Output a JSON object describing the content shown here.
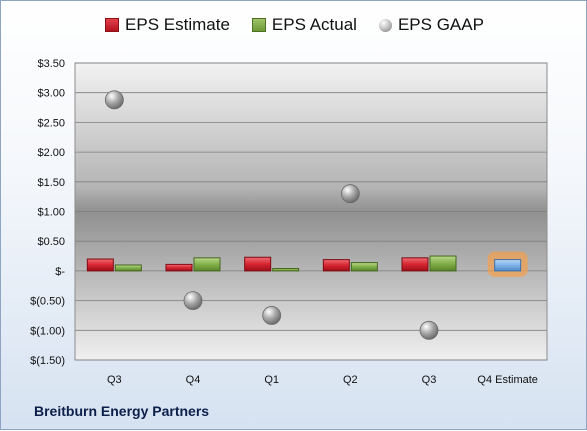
{
  "company": "Breitburn Energy Partners",
  "legend": {
    "estimate": "EPS Estimate",
    "actual": "EPS Actual",
    "gaap": "EPS GAAP"
  },
  "colors": {
    "estimate": "#cc1f2a",
    "actual": "#7fad45",
    "gaap": "#9a9a9a",
    "future_estimate": "#79aee6",
    "highlight": "#f5a04a"
  },
  "chart_data": {
    "type": "bar",
    "categories": [
      "Q3",
      "Q4",
      "Q1",
      "Q2",
      "Q3",
      "Q4 Estimate"
    ],
    "series": [
      {
        "name": "EPS Estimate",
        "values": [
          0.2,
          0.11,
          0.23,
          0.19,
          0.22,
          0.19
        ]
      },
      {
        "name": "EPS Actual",
        "values": [
          0.1,
          0.22,
          0.04,
          0.14,
          0.25,
          null
        ]
      },
      {
        "name": "EPS GAAP",
        "type": "scatter",
        "values": [
          2.88,
          -0.5,
          -0.75,
          1.3,
          -1.0,
          null
        ]
      }
    ],
    "yticks": [
      "$3.50",
      "$3.00",
      "$2.50",
      "$2.00",
      "$1.50",
      "$1.00",
      "$0.50",
      "$-",
      "$(0.50)",
      "$(1.00)",
      "$(1.50)"
    ],
    "ylim": [
      -1.5,
      3.5
    ],
    "grid": true,
    "legend_position": "top"
  }
}
